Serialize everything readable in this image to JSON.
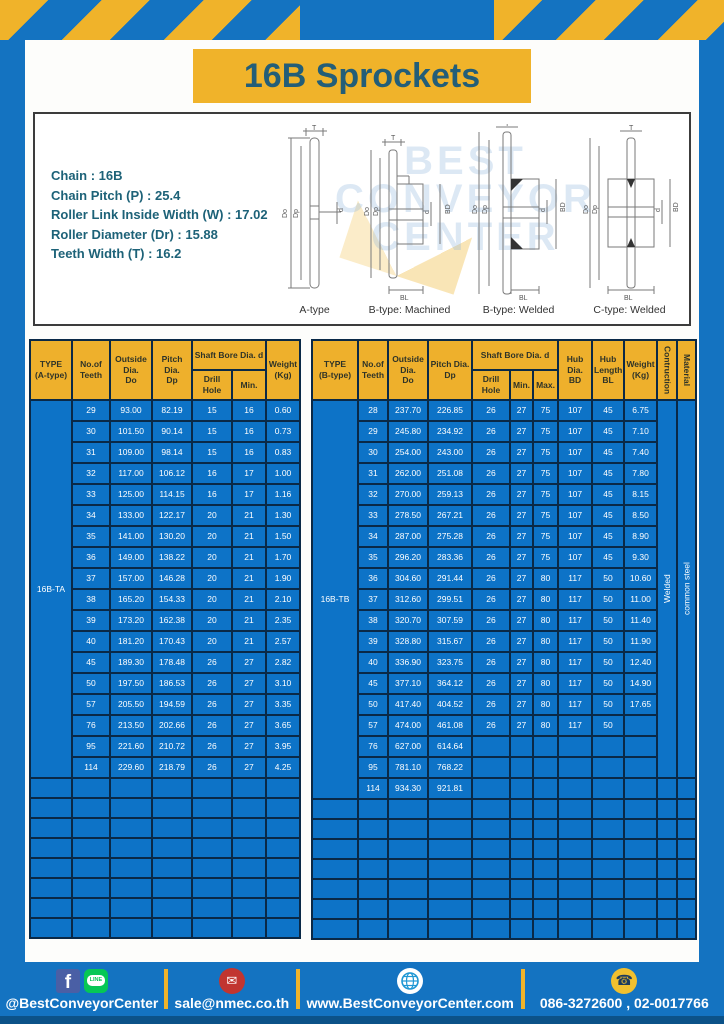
{
  "title": "16B Sprockets",
  "specs": [
    "Chain : 16B",
    "Chain Pitch (P) : 25.4",
    "Roller Link Inside Width (W) : 17.02",
    "Roller Diameter (Dr) : 15.88",
    "Teeth Width (T) : 16.2"
  ],
  "dims": {
    "t": "T",
    "do": "Do",
    "dp": "Dp",
    "d": "d",
    "bd": "BD",
    "bl": "BL"
  },
  "drawings": [
    {
      "label": "A-type"
    },
    {
      "label": "B-type: Machined"
    },
    {
      "label": "B-type: Welded"
    },
    {
      "label": "C-type: Welded"
    }
  ],
  "watermark": {
    "text": "BEST\nCONVEYOR\nCENTER"
  },
  "table_a": {
    "type_label": "16B-TA",
    "headers": {
      "type": "TYPE\n(A-type)",
      "teeth": "No.of\nTeeth",
      "outside": "Outside\nDia.\nDo",
      "pitch": "Pitch Dia.\nDp",
      "shaft_bore": "Shaft Bore Dia. d",
      "drill": "Drill Hole",
      "min": "Min.",
      "weight": "Weight\n(Kg)"
    },
    "rows": [
      [
        "29",
        "93.00",
        "82.19",
        "15",
        "16",
        "0.60"
      ],
      [
        "30",
        "101.50",
        "90.14",
        "15",
        "16",
        "0.73"
      ],
      [
        "31",
        "109.00",
        "98.14",
        "15",
        "16",
        "0.83"
      ],
      [
        "32",
        "117.00",
        "106.12",
        "16",
        "17",
        "1.00"
      ],
      [
        "33",
        "125.00",
        "114.15",
        "16",
        "17",
        "1.16"
      ],
      [
        "34",
        "133.00",
        "122.17",
        "20",
        "21",
        "1.30"
      ],
      [
        "35",
        "141.00",
        "130.20",
        "20",
        "21",
        "1.50"
      ],
      [
        "36",
        "149.00",
        "138.22",
        "20",
        "21",
        "1.70"
      ],
      [
        "37",
        "157.00",
        "146.28",
        "20",
        "21",
        "1.90"
      ],
      [
        "38",
        "165.20",
        "154.33",
        "20",
        "21",
        "2.10"
      ],
      [
        "39",
        "173.20",
        "162.38",
        "20",
        "21",
        "2.35"
      ],
      [
        "40",
        "181.20",
        "170.43",
        "20",
        "21",
        "2.57"
      ],
      [
        "45",
        "189.30",
        "178.48",
        "26",
        "27",
        "2.82"
      ],
      [
        "50",
        "197.50",
        "186.53",
        "26",
        "27",
        "3.10"
      ],
      [
        "57",
        "205.50",
        "194.59",
        "26",
        "27",
        "3.35"
      ],
      [
        "76",
        "213.50",
        "202.66",
        "26",
        "27",
        "3.65"
      ],
      [
        "95",
        "221.60",
        "210.72",
        "26",
        "27",
        "3.95"
      ],
      [
        "114",
        "229.60",
        "218.79",
        "26",
        "27",
        "4.25"
      ]
    ],
    "empty_rows": 8
  },
  "table_b": {
    "type_label": "16B-TB",
    "construction": "Welded",
    "material": "common steel",
    "headers": {
      "type": "TYPE\n(B-type)",
      "teeth": "No.of\nTeeth",
      "outside": "Outside\nDia.\nDo",
      "pitch": "Pitch Dia.\nDp",
      "shaft_bore": "Shaft Bore Dia. d",
      "drill": "Drill Hole",
      "min": "Min.",
      "max": "Max.",
      "hub_dia": "Hub Dia.\nBD",
      "hub_len": "Hub\nLength\nBL",
      "weight": "Weight\n(Kg)",
      "construction": "Contruction",
      "material": "Material"
    },
    "rows": [
      [
        "28",
        "237.70",
        "226.85",
        "26",
        "27",
        "75",
        "107",
        "45",
        "6.75"
      ],
      [
        "29",
        "245.80",
        "234.92",
        "26",
        "27",
        "75",
        "107",
        "45",
        "7.10"
      ],
      [
        "30",
        "254.00",
        "243.00",
        "26",
        "27",
        "75",
        "107",
        "45",
        "7.40"
      ],
      [
        "31",
        "262.00",
        "251.08",
        "26",
        "27",
        "75",
        "107",
        "45",
        "7.80"
      ],
      [
        "32",
        "270.00",
        "259.13",
        "26",
        "27",
        "75",
        "107",
        "45",
        "8.15"
      ],
      [
        "33",
        "278.50",
        "267.21",
        "26",
        "27",
        "75",
        "107",
        "45",
        "8.50"
      ],
      [
        "34",
        "287.00",
        "275.28",
        "26",
        "27",
        "75",
        "107",
        "45",
        "8.90"
      ],
      [
        "35",
        "296.20",
        "283.36",
        "26",
        "27",
        "75",
        "107",
        "45",
        "9.30"
      ],
      [
        "36",
        "304.60",
        "291.44",
        "26",
        "27",
        "80",
        "117",
        "50",
        "10.60"
      ],
      [
        "37",
        "312.60",
        "299.51",
        "26",
        "27",
        "80",
        "117",
        "50",
        "11.00"
      ],
      [
        "38",
        "320.70",
        "307.59",
        "26",
        "27",
        "80",
        "117",
        "50",
        "11.40"
      ],
      [
        "39",
        "328.80",
        "315.67",
        "26",
        "27",
        "80",
        "117",
        "50",
        "11.90"
      ],
      [
        "40",
        "336.90",
        "323.75",
        "26",
        "27",
        "80",
        "117",
        "50",
        "12.40"
      ],
      [
        "45",
        "377.10",
        "364.12",
        "26",
        "27",
        "80",
        "117",
        "50",
        "14.90"
      ],
      [
        "50",
        "417.40",
        "404.52",
        "26",
        "27",
        "80",
        "117",
        "50",
        "17.65"
      ],
      [
        "57",
        "474.00",
        "461.08",
        "26",
        "27",
        "80",
        "117",
        "50",
        ""
      ],
      [
        "76",
        "627.00",
        "614.64",
        "",
        "",
        "",
        "",
        "",
        ""
      ],
      [
        "95",
        "781.10",
        "768.22",
        "",
        "",
        "",
        "",
        "",
        ""
      ],
      [
        "114",
        "934.30",
        "921.81",
        "",
        "",
        "",
        "",
        "",
        ""
      ]
    ],
    "empty_rows": 7
  },
  "footer": {
    "social": "@BestConveyorCenter",
    "email": "sale@nmec.co.th",
    "website": "www.BestConveyorCenter.com",
    "phones": "086-3272600 , 02-0017766",
    "line_badge": "LINE",
    "fb_glyph": "f"
  },
  "colors": {
    "frame_blue": "#1473c1",
    "accent_yellow": "#f0b32a",
    "table_blue": "#0d73c7",
    "grid_navy": "#0a2947",
    "teal_text": "#1d6278"
  }
}
